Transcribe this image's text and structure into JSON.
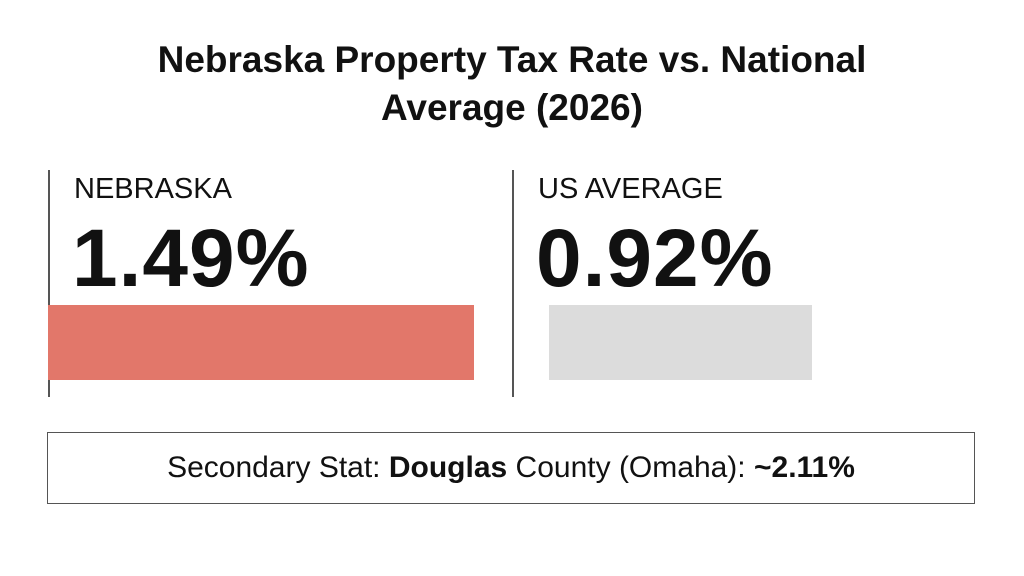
{
  "chart_data": {
    "type": "bar",
    "title": "Nebraska Property Tax Rate vs. National Average (2026)",
    "categories": [
      "NEBRASKA",
      "US AVERAGE"
    ],
    "values": [
      1.49,
      0.92
    ],
    "value_labels": [
      "1.49%",
      "0.92%"
    ],
    "colors": [
      "#e2776a",
      "#dcdcdc"
    ],
    "annotation": [
      {
        "text": "Secondary Stat: ",
        "bold": false
      },
      {
        "text": "Douglas",
        "bold": true
      },
      {
        "text": " County (Omaha): ",
        "bold": false
      },
      {
        "text": "~2.11%",
        "bold": true
      }
    ]
  }
}
